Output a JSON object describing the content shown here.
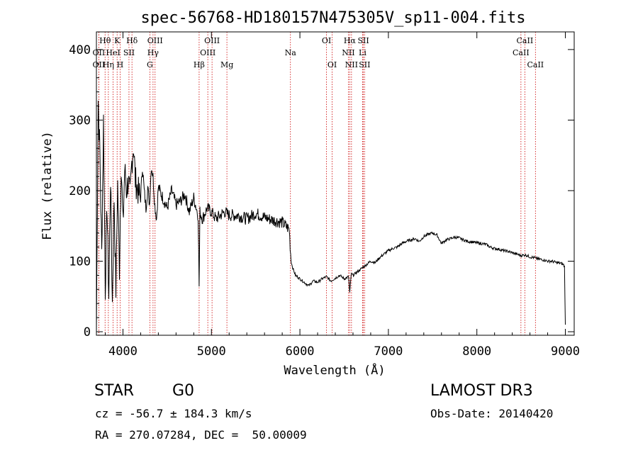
{
  "chart_data": {
    "type": "line",
    "title": "spec-56768-HD180157N475305V_sp11-004.fits",
    "xlabel": "Wavelength (Å)",
    "ylabel": "Flux (relative)",
    "xlim": [
      3700,
      9100
    ],
    "ylim": [
      -5,
      425
    ],
    "xticks": [
      "4000",
      "5000",
      "6000",
      "7000",
      "8000",
      "9000"
    ],
    "xtick_values": [
      4000,
      5000,
      6000,
      7000,
      8000,
      9000
    ],
    "yticks": [
      "0",
      "100",
      "200",
      "300",
      "400"
    ],
    "ytick_values": [
      0,
      100,
      200,
      300,
      400
    ],
    "series": [
      {
        "name": "flux",
        "x": [
          3700,
          3720,
          3740,
          3760,
          3780,
          3800,
          3820,
          3840,
          3860,
          3880,
          3900,
          3920,
          3940,
          3960,
          3980,
          4000,
          4020,
          4040,
          4060,
          4080,
          4100,
          4120,
          4140,
          4160,
          4180,
          4200,
          4220,
          4240,
          4260,
          4280,
          4300,
          4320,
          4340,
          4360,
          4380,
          4400,
          4450,
          4500,
          4550,
          4600,
          4650,
          4700,
          4750,
          4800,
          4850,
          4861,
          4870,
          4900,
          4950,
          5000,
          5050,
          5100,
          5150,
          5200,
          5300,
          5400,
          5500,
          5600,
          5700,
          5800,
          5880,
          5900,
          5920,
          5950,
          6000,
          6050,
          6100,
          6150,
          6200,
          6250,
          6300,
          6350,
          6400,
          6450,
          6500,
          6550,
          6563,
          6580,
          6600,
          6650,
          6700,
          6750,
          6800,
          6850,
          6900,
          6950,
          7000,
          7050,
          7100,
          7150,
          7200,
          7250,
          7300,
          7350,
          7400,
          7450,
          7500,
          7550,
          7600,
          7650,
          7700,
          7750,
          7800,
          7850,
          7900,
          7950,
          8000,
          8050,
          8100,
          8150,
          8200,
          8250,
          8300,
          8350,
          8400,
          8450,
          8500,
          8550,
          8600,
          8650,
          8700,
          8750,
          8800,
          8850,
          8900,
          8950,
          8980,
          8990,
          9000
        ],
        "values": [
          0,
          330,
          250,
          110,
          300,
          60,
          180,
          50,
          220,
          40,
          190,
          60,
          210,
          90,
          240,
          150,
          230,
          200,
          215,
          190,
          240,
          265,
          215,
          205,
          195,
          190,
          235,
          200,
          175,
          205,
          180,
          235,
          220,
          180,
          160,
          205,
          190,
          175,
          200,
          180,
          185,
          195,
          170,
          190,
          165,
          65,
          170,
          160,
          175,
          170,
          160,
          165,
          170,
          165,
          165,
          160,
          168,
          162,
          158,
          155,
          145,
          100,
          90,
          80,
          75,
          70,
          65,
          72,
          70,
          75,
          78,
          72,
          76,
          80,
          75,
          78,
          55,
          82,
          80,
          85,
          90,
          95,
          100,
          98,
          105,
          110,
          115,
          118,
          120,
          125,
          128,
          130,
          132,
          128,
          135,
          138,
          140,
          137,
          125,
          130,
          132,
          134,
          133,
          130,
          128,
          127,
          126,
          125,
          124,
          120,
          118,
          117,
          115,
          114,
          112,
          110,
          108,
          109,
          106,
          105,
          103,
          102,
          100,
          100,
          98,
          97,
          95,
          92,
          10
        ]
      }
    ],
    "lines": [
      {
        "name": "OII",
        "wave": 3727,
        "label": "OII",
        "row": 2
      },
      {
        "name": "CII",
        "wave": 3727,
        "label": "OII",
        "row": 3
      },
      {
        "name": "H-theta",
        "wave": 3798,
        "label": "Hθ",
        "row": 1
      },
      {
        "name": "H-eta",
        "wave": 3835,
        "label": "Hη",
        "row": 3
      },
      {
        "name": "HeI",
        "wave": 3889,
        "label": "HeI",
        "row": 2
      },
      {
        "name": "K",
        "wave": 3934,
        "label": "K",
        "row": 1
      },
      {
        "name": "H",
        "wave": 3968,
        "label": "H",
        "row": 3
      },
      {
        "name": "SII-a",
        "wave": 4068,
        "label": "SII",
        "row": 2
      },
      {
        "name": "H-delta",
        "wave": 4102,
        "label": "Hδ",
        "row": 1
      },
      {
        "name": "G",
        "wave": 4304,
        "label": "G",
        "row": 3
      },
      {
        "name": "H-gamma",
        "wave": 4340,
        "label": "Hγ",
        "row": 2
      },
      {
        "name": "OIII-a",
        "wave": 4363,
        "label": "OIII",
        "row": 1
      },
      {
        "name": "H-beta",
        "wave": 4861,
        "label": "Hβ",
        "row": 3
      },
      {
        "name": "OIII-b",
        "wave": 4959,
        "label": "OIII",
        "row": 2
      },
      {
        "name": "OIII-c",
        "wave": 5007,
        "label": "OIII",
        "row": 1
      },
      {
        "name": "Mg",
        "wave": 5175,
        "label": "Mg",
        "row": 3
      },
      {
        "name": "Na",
        "wave": 5893,
        "label": "Na",
        "row": 2
      },
      {
        "name": "OI-a",
        "wave": 6300,
        "label": "OI",
        "row": 1
      },
      {
        "name": "OI-b",
        "wave": 6364,
        "label": "OI",
        "row": 3
      },
      {
        "name": "NII-a",
        "wave": 6548,
        "label": "NII",
        "row": 2
      },
      {
        "name": "H-alpha",
        "wave": 6563,
        "label": "Hα",
        "row": 1
      },
      {
        "name": "NII-b",
        "wave": 6583,
        "label": "NII",
        "row": 3
      },
      {
        "name": "Li",
        "wave": 6708,
        "label": "Li",
        "row": 2
      },
      {
        "name": "SII-b",
        "wave": 6717,
        "label": "SII",
        "row": 1
      },
      {
        "name": "SII-c",
        "wave": 6731,
        "label": "SII",
        "row": 3
      },
      {
        "name": "CaII-a",
        "wave": 8498,
        "label": "CaII",
        "row": 2
      },
      {
        "name": "CaII-b",
        "wave": 8542,
        "label": "CaII",
        "row": 1
      },
      {
        "name": "CaII-c",
        "wave": 8662,
        "label": "CaII",
        "row": 3
      }
    ],
    "line_color": "#cc0000",
    "curve_color": "#000000"
  },
  "info": {
    "class": "STAR",
    "subclass": "G0",
    "survey": "LAMOST DR3",
    "cz": "cz = -56.7 ± 184.3 km/s",
    "obs_date": "Obs-Date: 20140420",
    "radec": "RA = 270.07284, DEC =  50.00009"
  }
}
